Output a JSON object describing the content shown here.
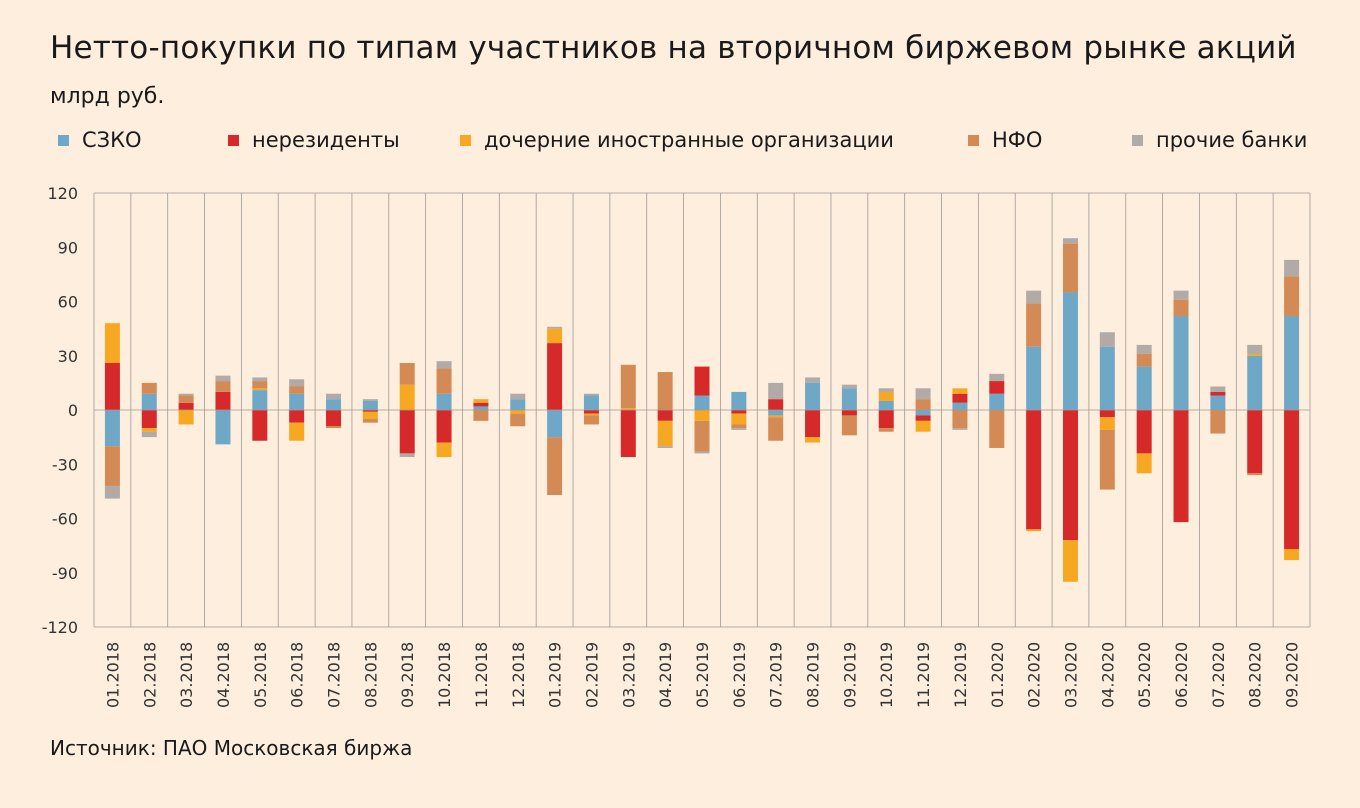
{
  "title": "Нетто-покупки по типам участников на вторичном биржевом рынке акций",
  "subtitle": "млрд руб.",
  "source": "Источник: ПАО Московская биржа",
  "chart_data": {
    "type": "bar",
    "stacked": true,
    "ylim": [
      -120,
      120
    ],
    "yticks": [
      120,
      90,
      60,
      30,
      0,
      -30,
      -60,
      -90,
      -120
    ],
    "grid": "vertical",
    "legend_position": "top",
    "categories": [
      "01.2018",
      "02.2018",
      "03.2018",
      "04.2018",
      "05.2018",
      "06.2018",
      "07.2018",
      "08.2018",
      "09.2018",
      "10.2018",
      "11.2018",
      "12.2018",
      "01.2019",
      "02.2019",
      "03.2019",
      "04.2019",
      "05.2019",
      "06.2019",
      "07.2019",
      "08.2019",
      "09.2019",
      "10.2019",
      "11.2019",
      "12.2019",
      "01.2020",
      "02.2020",
      "03.2020",
      "04.2020",
      "05.2020",
      "06.2020",
      "07.2020",
      "08.2020",
      "09.2020"
    ],
    "series": [
      {
        "name": "СЗКО",
        "color": "#6fa8c7",
        "values": [
          -20,
          9,
          0,
          -19,
          11,
          9,
          6,
          5,
          0,
          9,
          2,
          6,
          -15,
          8,
          0,
          0,
          8,
          10,
          -3,
          15,
          12,
          5,
          -3,
          4,
          9,
          35,
          65,
          35,
          24,
          52,
          8,
          30,
          52
        ]
      },
      {
        "name": "нерезиденты",
        "color": "#d62a2a",
        "values": [
          26,
          -10,
          4,
          10,
          -17,
          -7,
          -9,
          -1,
          -24,
          -18,
          2,
          0,
          37,
          -2,
          -26,
          -6,
          16,
          -2,
          6,
          -15,
          -3,
          -10,
          -3,
          5,
          7,
          -66,
          -72,
          -4,
          -24,
          -62,
          2,
          -35,
          -77
        ]
      },
      {
        "name": "дочерние иностранные организации",
        "color": "#f7a823",
        "values": [
          22,
          -2,
          -8,
          0,
          1,
          -10,
          0,
          -4,
          14,
          -8,
          2,
          -2,
          8,
          -1,
          1,
          -14,
          -6,
          -6,
          -1,
          -3,
          0,
          5,
          -6,
          3,
          0,
          -1,
          -23,
          -7,
          -11,
          0,
          0,
          1,
          -6
        ]
      },
      {
        "name": "НФО",
        "color": "#d38a55",
        "values": [
          -22,
          6,
          4,
          6,
          4,
          4,
          -1,
          -2,
          12,
          14,
          -6,
          -7,
          -32,
          -5,
          24,
          21,
          -17,
          -2,
          -13,
          0,
          -11,
          -2,
          6,
          -10,
          -21,
          24,
          27,
          -33,
          7,
          9,
          -13,
          -1,
          22
        ]
      },
      {
        "name": "прочие банки",
        "color": "#b1aaa7",
        "values": [
          -7,
          -3,
          1,
          3,
          2,
          4,
          3,
          1,
          -2,
          4,
          0,
          3,
          1,
          1,
          0,
          -1,
          -1,
          -1,
          9,
          3,
          2,
          2,
          6,
          -1,
          4,
          7,
          3,
          8,
          5,
          5,
          3,
          5,
          9
        ]
      }
    ]
  }
}
